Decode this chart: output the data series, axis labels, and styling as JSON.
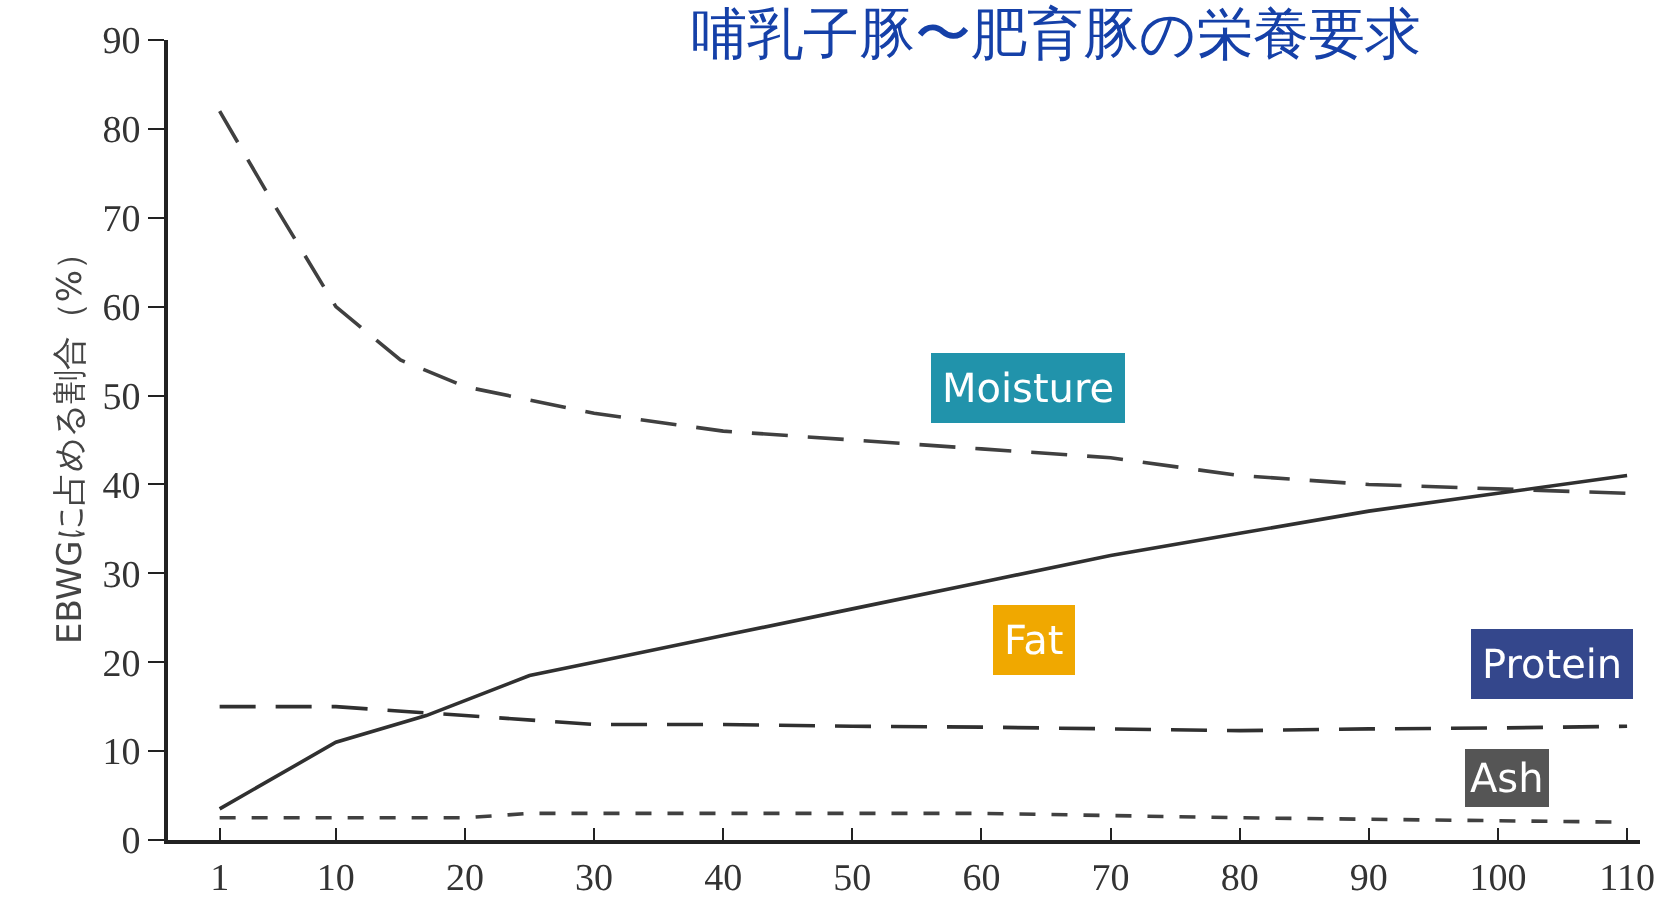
{
  "chart_data": {
    "type": "line",
    "title": "哺乳子豚〜肥育豚の栄養要求",
    "ylabel": "EBWGに占める割合（%）",
    "xlim": [
      -3,
      111
    ],
    "xticks": [
      1,
      10,
      20,
      30,
      40,
      50,
      60,
      70,
      80,
      90,
      100,
      110
    ],
    "ylim": [
      0,
      90
    ],
    "yticks": [
      0,
      10,
      20,
      30,
      40,
      50,
      60,
      70,
      80,
      90
    ],
    "grid": false,
    "legend": false,
    "marker": "none",
    "series": [
      {
        "name": "Moisture",
        "color": "#404040",
        "line_style": "dashed",
        "x": [
          1,
          5,
          10,
          15,
          20,
          30,
          40,
          50,
          60,
          70,
          80,
          90,
          100,
          110
        ],
        "values": [
          82,
          72,
          60,
          54,
          51,
          48,
          46,
          45,
          44,
          43,
          41,
          40,
          39.5,
          39
        ]
      },
      {
        "name": "Fat",
        "color": "#303030",
        "line_style": "solid",
        "x": [
          1,
          10,
          17,
          25,
          30,
          40,
          50,
          60,
          70,
          80,
          90,
          100,
          110
        ],
        "values": [
          3.5,
          11,
          14,
          18.5,
          20,
          23,
          26,
          29,
          32,
          34.5,
          37,
          39,
          41
        ]
      },
      {
        "name": "Protein",
        "color": "#303030",
        "line_style": "dashed",
        "x": [
          1,
          10,
          20,
          30,
          40,
          50,
          60,
          70,
          80,
          90,
          100,
          110
        ],
        "values": [
          15,
          15,
          14,
          13,
          13,
          12.8,
          12.7,
          12.5,
          12.3,
          12.5,
          12.6,
          12.8
        ]
      },
      {
        "name": "Ash",
        "color": "#404040",
        "line_style": "dotted",
        "x": [
          1,
          20,
          25,
          60,
          80,
          110
        ],
        "values": [
          2.5,
          2.5,
          3,
          3,
          2.5,
          2
        ]
      }
    ]
  }
}
